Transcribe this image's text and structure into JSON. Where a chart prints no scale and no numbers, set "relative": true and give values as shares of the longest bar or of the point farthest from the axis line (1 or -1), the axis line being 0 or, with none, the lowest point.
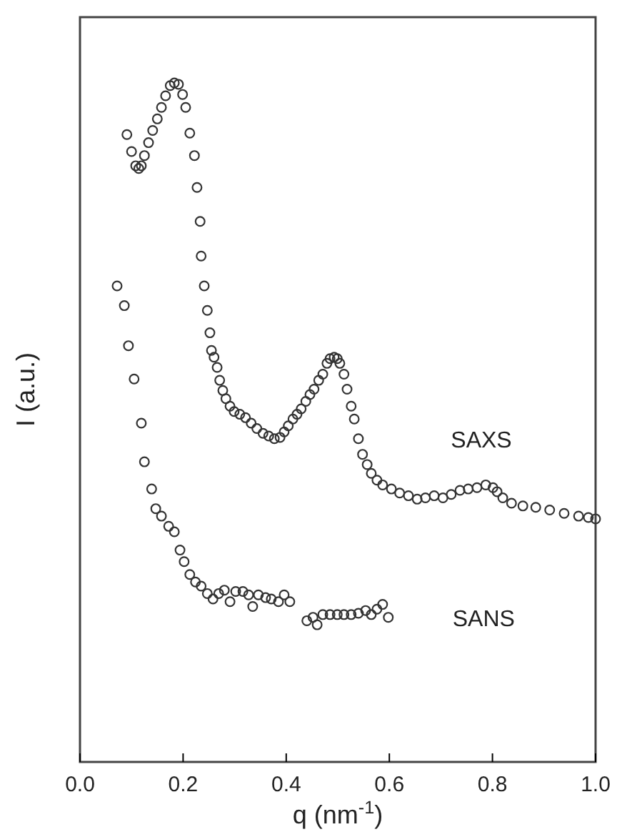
{
  "chart_data": {
    "type": "scatter",
    "xlabel": "q (nm$^{-1}$)",
    "ylabel": "I (a.u.)",
    "relative": true,
    "xlim": [
      0,
      1
    ],
    "xticks": [
      {
        "value": 0,
        "label": "0.0"
      },
      {
        "value": 0.2,
        "label": "0.2"
      },
      {
        "value": 0.4,
        "label": "0.4"
      },
      {
        "value": 0.6,
        "label": "0.6"
      },
      {
        "value": 0.8,
        "label": "0.8"
      },
      {
        "value": 1,
        "label": "1.0"
      }
    ],
    "marker": "circle",
    "grid": false,
    "legend": false,
    "series": [
      {
        "name": "SAXS",
        "color": "#333333",
        "x": [
          0.091,
          0.1,
          0.108,
          0.114,
          0.119,
          0.125,
          0.133,
          0.141,
          0.15,
          0.158,
          0.166,
          0.175,
          0.183,
          0.191,
          0.199,
          0.205,
          0.213,
          0.222,
          0.227,
          0.233,
          0.235,
          0.241,
          0.247,
          0.252,
          0.255,
          0.26,
          0.266,
          0.271,
          0.277,
          0.283,
          0.291,
          0.299,
          0.31,
          0.321,
          0.332,
          0.343,
          0.355,
          0.366,
          0.377,
          0.388,
          0.396,
          0.404,
          0.413,
          0.421,
          0.429,
          0.438,
          0.446,
          0.454,
          0.463,
          0.471,
          0.479,
          0.485,
          0.493,
          0.499,
          0.504,
          0.512,
          0.518,
          0.526,
          0.532,
          0.54,
          0.548,
          0.557,
          0.565,
          0.576,
          0.587,
          0.604,
          0.62,
          0.637,
          0.654,
          0.67,
          0.687,
          0.704,
          0.72,
          0.737,
          0.753,
          0.77,
          0.787,
          0.801,
          0.809,
          0.82,
          0.837,
          0.859,
          0.884,
          0.911,
          0.939,
          0.967,
          0.986,
          1.0
        ],
        "values": [
          0.924,
          0.899,
          0.878,
          0.874,
          0.878,
          0.893,
          0.912,
          0.93,
          0.947,
          0.964,
          0.981,
          0.996,
          1,
          0.998,
          0.983,
          0.964,
          0.926,
          0.893,
          0.846,
          0.796,
          0.745,
          0.701,
          0.665,
          0.632,
          0.606,
          0.596,
          0.581,
          0.562,
          0.547,
          0.535,
          0.524,
          0.516,
          0.512,
          0.507,
          0.499,
          0.491,
          0.484,
          0.48,
          0.476,
          0.478,
          0.486,
          0.495,
          0.505,
          0.512,
          0.52,
          0.531,
          0.541,
          0.549,
          0.562,
          0.571,
          0.587,
          0.594,
          0.596,
          0.594,
          0.587,
          0.571,
          0.549,
          0.524,
          0.505,
          0.476,
          0.453,
          0.438,
          0.425,
          0.415,
          0.408,
          0.402,
          0.396,
          0.392,
          0.387,
          0.389,
          0.392,
          0.389,
          0.394,
          0.4,
          0.402,
          0.404,
          0.408,
          0.404,
          0.398,
          0.389,
          0.381,
          0.377,
          0.375,
          0.371,
          0.366,
          0.362,
          0.36,
          0.358
        ]
      },
      {
        "name": "SANS",
        "color": "#333333",
        "x": [
          0.072,
          0.086,
          0.094,
          0.105,
          0.119,
          0.125,
          0.139,
          0.147,
          0.158,
          0.172,
          0.183,
          0.194,
          0.202,
          0.213,
          0.224,
          0.235,
          0.247,
          0.258,
          0.269,
          0.28,
          0.291,
          0.302,
          0.316,
          0.327,
          0.335,
          0.346,
          0.36,
          0.371,
          0.385,
          0.396,
          0.407,
          0.44,
          0.452,
          0.46,
          0.471,
          0.485,
          0.499,
          0.512,
          0.526,
          0.54,
          0.554,
          0.565,
          0.576,
          0.587,
          0.598
        ],
        "values": [
          0.701,
          0.672,
          0.613,
          0.564,
          0.499,
          0.442,
          0.402,
          0.373,
          0.362,
          0.347,
          0.339,
          0.312,
          0.295,
          0.276,
          0.265,
          0.259,
          0.248,
          0.24,
          0.248,
          0.253,
          0.236,
          0.251,
          0.251,
          0.246,
          0.229,
          0.246,
          0.242,
          0.24,
          0.236,
          0.246,
          0.236,
          0.208,
          0.213,
          0.202,
          0.217,
          0.217,
          0.217,
          0.217,
          0.217,
          0.219,
          0.223,
          0.217,
          0.225,
          0.232,
          0.213
        ]
      }
    ]
  }
}
